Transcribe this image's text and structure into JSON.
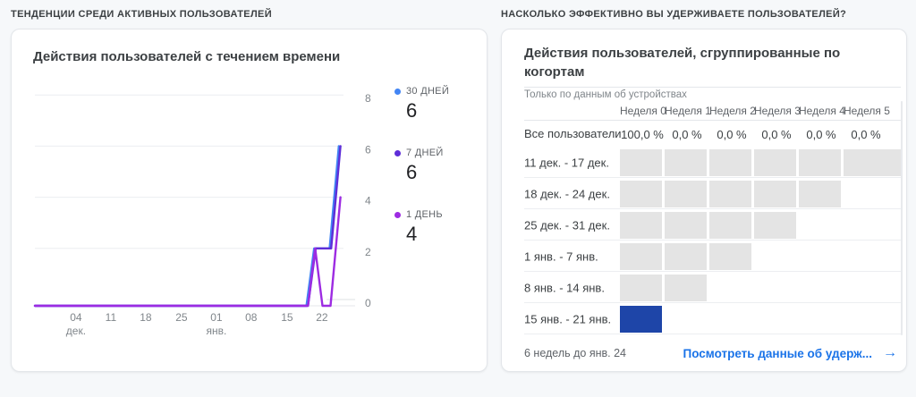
{
  "left_section": {
    "header": "ТЕНДЕНЦИИ СРЕДИ АКТИВНЫХ ПОЛЬЗОВАТЕЛЕЙ",
    "card": {
      "title": "Действия пользователей с течением времени",
      "legend": [
        {
          "label": "30 ДНЕЙ",
          "value": "6",
          "color": "#4285F4"
        },
        {
          "label": "7 ДНЕЙ",
          "value": "6",
          "color": "#5E2ED8"
        },
        {
          "label": "1 ДЕНЬ",
          "value": "4",
          "color": "#9D2BE2"
        }
      ]
    }
  },
  "right_section": {
    "header": "НАСКОЛЬКО ЭФФЕКТИВНО ВЫ УДЕРЖИВАЕТЕ ПОЛЬЗОВАТЕЛЕЙ?",
    "card": {
      "title": "Действия пользователей, сгруппированные по когортам",
      "subtitle": "Только по данным об устройствах",
      "footer": "6 недель до янв. 24",
      "link_label": "Посмотреть данные об удерж...",
      "link_arrow": "→"
    }
  },
  "chart_data": [
    {
      "type": "line",
      "title": "Действия пользователей с течением времени",
      "xlabel": "",
      "ylabel": "",
      "ylim": [
        0,
        8
      ],
      "y_ticks": [
        8,
        6,
        4,
        2,
        0
      ],
      "grid": "horizontal",
      "legend_position": "right",
      "x_ticks": [
        {
          "label": "04",
          "sub": "дек.",
          "pos": 0.133
        },
        {
          "label": "11",
          "pos": 0.246
        },
        {
          "label": "18",
          "pos": 0.359
        },
        {
          "label": "25",
          "pos": 0.475
        },
        {
          "label": "01",
          "sub": "янв.",
          "pos": 0.588
        },
        {
          "label": "08",
          "pos": 0.701
        },
        {
          "label": "15",
          "pos": 0.817
        },
        {
          "label": "22",
          "pos": 0.93
        }
      ],
      "series": [
        {
          "name": "30 ДНЕЙ",
          "current_value": 6,
          "color": "#4285F4",
          "points": [
            [
              0,
              0
            ],
            [
              0.88,
              0
            ],
            [
              0.905,
              2
            ],
            [
              0.955,
              2
            ],
            [
              0.985,
              6
            ]
          ]
        },
        {
          "name": "7 ДНЕЙ",
          "current_value": 6,
          "color": "#5E2ED8",
          "points": [
            [
              0,
              0
            ],
            [
              0.885,
              0
            ],
            [
              0.91,
              2
            ],
            [
              0.96,
              2
            ],
            [
              0.99,
              6
            ]
          ]
        },
        {
          "name": "1 ДЕНЬ",
          "current_value": 4,
          "color": "#9D2BE2",
          "points": [
            [
              0,
              0
            ],
            [
              0.885,
              0
            ],
            [
              0.908,
              2
            ],
            [
              0.932,
              0
            ],
            [
              0.958,
              0
            ],
            [
              0.99,
              4
            ]
          ]
        }
      ]
    },
    {
      "type": "heatmap",
      "title": "Действия пользователей, сгруппированные по когортам",
      "subtitle": "Только по данным об устройствах",
      "columns": [
        "Неделя 0",
        "Неделя 1",
        "Неделя 2",
        "Неделя 3",
        "Неделя 4",
        "Неделя 5"
      ],
      "summary_row": {
        "label": "Все пользователи",
        "values": [
          "100,0 %",
          "0,0 %",
          "0,0 %",
          "0,0 %",
          "0,0 %",
          "0,0 %"
        ]
      },
      "rows": [
        {
          "label": "11 дек. - 17 дек.",
          "num_cells": 6
        },
        {
          "label": "18 дек. - 24 дек.",
          "num_cells": 5
        },
        {
          "label": "25 дек. - 31 дек.",
          "num_cells": 4
        },
        {
          "label": "1 янв. - 7 янв.",
          "num_cells": 3
        },
        {
          "label": "8 янв. - 14 янв.",
          "num_cells": 2
        },
        {
          "label": "15 янв. - 21 янв.",
          "num_cells": 1,
          "cell_color": "#1E45A8"
        }
      ],
      "cell_default_color": "#E4E4E4",
      "highlight_color": "#1E45A8",
      "footer": "6 недель до янв. 24"
    }
  ]
}
